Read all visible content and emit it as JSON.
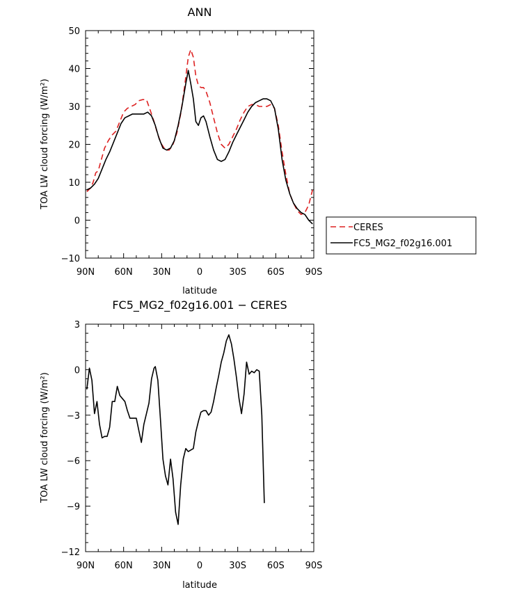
{
  "chart_data": [
    {
      "type": "line",
      "title": "ANN",
      "xlabel": "latitude",
      "ylabel": "TOA LW cloud forcing (W/m²)",
      "xlim": [
        90,
        -90
      ],
      "ylim": [
        -10,
        50
      ],
      "x_ticks": [
        {
          "value": 90,
          "label": "90N"
        },
        {
          "value": 60,
          "label": "60N"
        },
        {
          "value": 30,
          "label": "30N"
        },
        {
          "value": 0,
          "label": "0"
        },
        {
          "value": -30,
          "label": "30S"
        },
        {
          "value": -60,
          "label": "60S"
        },
        {
          "value": -90,
          "label": "90S"
        }
      ],
      "y_ticks": [
        -10,
        0,
        10,
        20,
        30,
        40,
        50
      ],
      "legend": "right",
      "series": [
        {
          "name": "CERES",
          "color": "#dd2222",
          "style": "dashed",
          "points": [
            [
              89,
              7.5
            ],
            [
              86,
              8.5
            ],
            [
              84,
              10
            ],
            [
              82,
              12.5
            ],
            [
              80,
              13
            ],
            [
              78,
              15.5
            ],
            [
              75,
              19
            ],
            [
              72,
              21
            ],
            [
              69,
              22.5
            ],
            [
              66,
              23.5
            ],
            [
              63,
              26
            ],
            [
              60,
              28.5
            ],
            [
              57,
              29.5
            ],
            [
              54,
              30
            ],
            [
              51,
              30.5
            ],
            [
              48,
              31.5
            ],
            [
              45,
              31.8
            ],
            [
              42,
              31.8
            ],
            [
              39,
              29
            ],
            [
              36,
              26
            ],
            [
              33,
              22.5
            ],
            [
              30,
              20
            ],
            [
              27,
              18.5
            ],
            [
              24,
              18.5
            ],
            [
              21,
              20
            ],
            [
              18,
              23
            ],
            [
              15,
              28
            ],
            [
              12,
              35
            ],
            [
              9,
              43
            ],
            [
              7,
              45
            ],
            [
              5,
              43
            ],
            [
              3,
              38
            ],
            [
              1,
              35.5
            ],
            [
              -1,
              35
            ],
            [
              -3,
              35
            ],
            [
              -5,
              34
            ],
            [
              -8,
              31
            ],
            [
              -11,
              27
            ],
            [
              -14,
              23
            ],
            [
              -17,
              20
            ],
            [
              -20,
              19
            ],
            [
              -23,
              20
            ],
            [
              -26,
              22
            ],
            [
              -29,
              24
            ],
            [
              -32,
              26.5
            ],
            [
              -35,
              28.5
            ],
            [
              -38,
              30
            ],
            [
              -41,
              30.5
            ],
            [
              -44,
              30.5
            ],
            [
              -47,
              30
            ],
            [
              -50,
              30
            ],
            [
              -53,
              30
            ],
            [
              -56,
              30.5
            ],
            [
              -59,
              29.5
            ],
            [
              -62,
              25
            ],
            [
              -65,
              18
            ],
            [
              -68,
              12
            ],
            [
              -71,
              7
            ],
            [
              -74,
              4.5
            ],
            [
              -77,
              2.5
            ],
            [
              -80,
              1.5
            ],
            [
              -83,
              2
            ],
            [
              -86,
              4
            ],
            [
              -89,
              8
            ]
          ]
        },
        {
          "name": "FC5_MG2_f02g16.001",
          "color": "#000000",
          "style": "solid",
          "points": [
            [
              89,
              8
            ],
            [
              86,
              8.5
            ],
            [
              83,
              9.5
            ],
            [
              80,
              11
            ],
            [
              77,
              13.5
            ],
            [
              74,
              16
            ],
            [
              71,
              18
            ],
            [
              68,
              20.5
            ],
            [
              65,
              23
            ],
            [
              62,
              25.5
            ],
            [
              59,
              27
            ],
            [
              56,
              27.5
            ],
            [
              53,
              28
            ],
            [
              50,
              28
            ],
            [
              47,
              28
            ],
            [
              44,
              28
            ],
            [
              41,
              28.5
            ],
            [
              38,
              27.5
            ],
            [
              35,
              25
            ],
            [
              32,
              21.5
            ],
            [
              29,
              19
            ],
            [
              26,
              18.5
            ],
            [
              23,
              19
            ],
            [
              20,
              21
            ],
            [
              17,
              25
            ],
            [
              14,
              30
            ],
            [
              11,
              36
            ],
            [
              9,
              39.5
            ],
            [
              7,
              36
            ],
            [
              5,
              32
            ],
            [
              3,
              26
            ],
            [
              1,
              25
            ],
            [
              -1,
              27
            ],
            [
              -3,
              27.5
            ],
            [
              -5,
              26
            ],
            [
              -8,
              22
            ],
            [
              -11,
              18.5
            ],
            [
              -14,
              16
            ],
            [
              -17,
              15.5
            ],
            [
              -20,
              16
            ],
            [
              -23,
              18
            ],
            [
              -26,
              20.5
            ],
            [
              -29,
              22.5
            ],
            [
              -32,
              24.5
            ],
            [
              -35,
              26.5
            ],
            [
              -38,
              28.5
            ],
            [
              -41,
              30
            ],
            [
              -44,
              31
            ],
            [
              -47,
              31.5
            ],
            [
              -50,
              32
            ],
            [
              -53,
              32
            ],
            [
              -56,
              31.5
            ],
            [
              -59,
              29.5
            ],
            [
              -62,
              24
            ],
            [
              -65,
              16
            ],
            [
              -68,
              10.5
            ],
            [
              -71,
              7
            ],
            [
              -74,
              4.5
            ],
            [
              -77,
              3
            ],
            [
              -80,
              2
            ],
            [
              -83,
              1.5
            ],
            [
              -86,
              0
            ],
            [
              -89,
              -1
            ]
          ]
        }
      ]
    },
    {
      "type": "line",
      "title": "FC5_MG2_f02g16.001 − CERES",
      "xlabel": "latitude",
      "ylabel": "TOA LW cloud forcing (W/m²)",
      "xlim": [
        90,
        -90
      ],
      "ylim": [
        -12,
        3
      ],
      "x_ticks": [
        {
          "value": 90,
          "label": "90N"
        },
        {
          "value": 60,
          "label": "60N"
        },
        {
          "value": 30,
          "label": "30N"
        },
        {
          "value": 0,
          "label": "0"
        },
        {
          "value": -30,
          "label": "30S"
        },
        {
          "value": -60,
          "label": "60S"
        },
        {
          "value": -90,
          "label": "90S"
        }
      ],
      "y_ticks": [
        -12,
        -9,
        -6,
        -3,
        0,
        3
      ],
      "series": [
        {
          "color": "#000000",
          "style": "solid",
          "points": [
            [
              89,
              -1.3
            ],
            [
              87,
              0.1
            ],
            [
              85,
              -0.7
            ],
            [
              83,
              -2.9
            ],
            [
              81,
              -2.1
            ],
            [
              79,
              -3.6
            ],
            [
              77,
              -4.5
            ],
            [
              75,
              -4.4
            ],
            [
              73,
              -4.4
            ],
            [
              71,
              -3.8
            ],
            [
              69,
              -2.1
            ],
            [
              67,
              -2.1
            ],
            [
              65,
              -1.1
            ],
            [
              63,
              -1.7
            ],
            [
              61,
              -1.9
            ],
            [
              59,
              -2.1
            ],
            [
              57,
              -2.7
            ],
            [
              55,
              -3.2
            ],
            [
              52,
              -3.2
            ],
            [
              50,
              -3.2
            ],
            [
              48,
              -4
            ],
            [
              46,
              -4.8
            ],
            [
              44,
              -3.6
            ],
            [
              42,
              -2.9
            ],
            [
              40,
              -2.2
            ],
            [
              38,
              -0.6
            ],
            [
              36,
              0.1
            ],
            [
              35,
              0.2
            ],
            [
              33,
              -0.7
            ],
            [
              31,
              -3.2
            ],
            [
              29,
              -5.9
            ],
            [
              27,
              -7
            ],
            [
              25,
              -7.6
            ],
            [
              23,
              -5.9
            ],
            [
              21,
              -7.2
            ],
            [
              19,
              -9.4
            ],
            [
              17,
              -10.2
            ],
            [
              15,
              -7.6
            ],
            [
              13,
              -5.9
            ],
            [
              11,
              -5.2
            ],
            [
              9,
              -5.4
            ],
            [
              7,
              -5.3
            ],
            [
              5,
              -5.2
            ],
            [
              3,
              -4.1
            ],
            [
              1,
              -3.4
            ],
            [
              -1,
              -2.8
            ],
            [
              -3,
              -2.7
            ],
            [
              -5,
              -2.7
            ],
            [
              -7,
              -3
            ],
            [
              -9,
              -2.8
            ],
            [
              -11,
              -2.1
            ],
            [
              -13,
              -1.2
            ],
            [
              -15,
              -0.4
            ],
            [
              -17,
              0.5
            ],
            [
              -19,
              1.1
            ],
            [
              -21,
              1.9
            ],
            [
              -23,
              2.3
            ],
            [
              -25,
              1.7
            ],
            [
              -27,
              0.7
            ],
            [
              -29,
              -0.5
            ],
            [
              -31,
              -1.9
            ],
            [
              -33,
              -2.9
            ],
            [
              -35,
              -1.6
            ],
            [
              -37,
              0.5
            ],
            [
              -39,
              -0.3
            ],
            [
              -41,
              -0.1
            ],
            [
              -43,
              -0.2
            ],
            [
              -45,
              0
            ],
            [
              -47,
              -0.1
            ],
            [
              -49,
              -3
            ],
            [
              -51,
              -8.8
            ]
          ]
        }
      ]
    }
  ]
}
